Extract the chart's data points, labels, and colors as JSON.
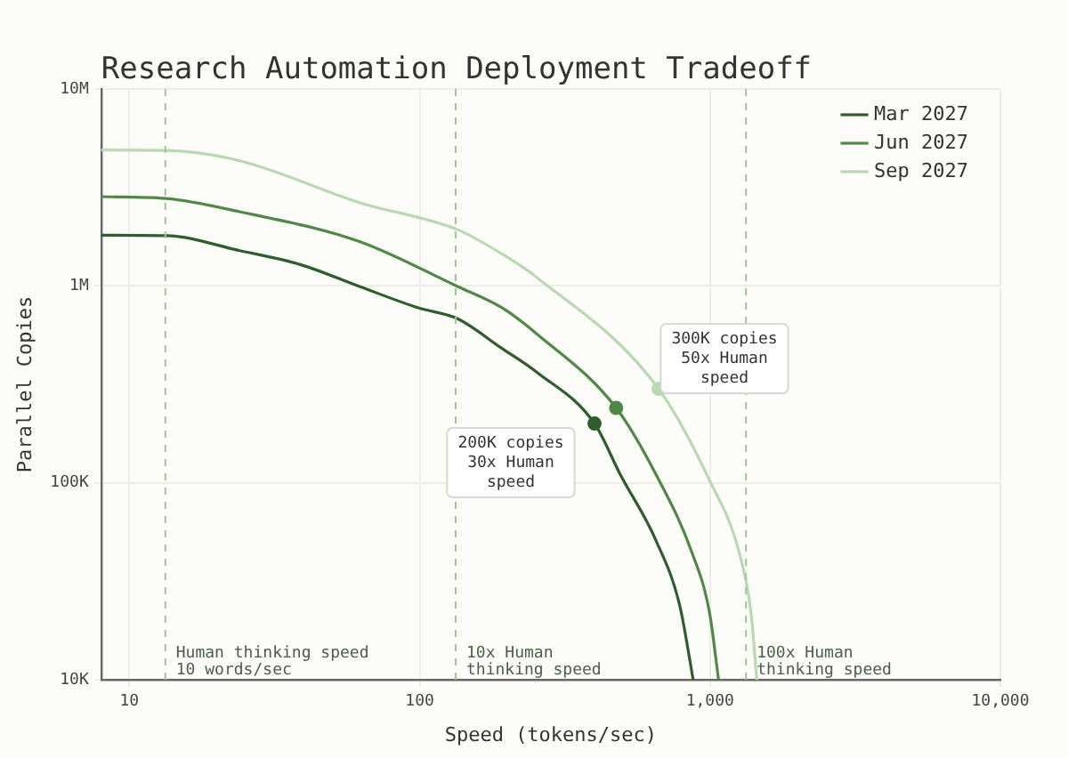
{
  "chart_data": {
    "type": "line",
    "title": "Research Automation Deployment Tradeoff",
    "xlabel": "Speed (tokens/sec)",
    "ylabel": "Parallel Copies",
    "log": "xy",
    "xlim": [
      8,
      10000
    ],
    "xticks": [
      10,
      100,
      {
        "value": 1000,
        "label": "1,000"
      },
      {
        "value": 10000,
        "label": "10,000"
      }
    ],
    "ylim": [
      10000,
      10000000
    ],
    "yticks": [
      {
        "value": 10000,
        "label": "10K"
      },
      {
        "value": 100000,
        "label": "100K"
      },
      {
        "value": 1000000,
        "label": "1M"
      },
      {
        "value": 10000000,
        "label": "10M"
      }
    ],
    "grid": true,
    "legend": "top right",
    "line_style": "solid",
    "marker": "none",
    "series": [
      {
        "name": "Mar 2027",
        "color": "#2e5e2b",
        "x": [
          8,
          13.4,
          24,
          39,
          62,
          99,
          135,
          191,
          254,
          400,
          491,
          652,
          787,
          875
        ],
        "values": [
          1810000,
          1800000,
          1510000,
          1280000,
          993000,
          773000,
          681000,
          484000,
          363000,
          200000,
          110000,
          50800,
          23700,
          10000
        ]
      },
      {
        "name": "Jun 2027",
        "color": "#4f8a45",
        "x": [
          8,
          13.4,
          24,
          62,
          135,
          191,
          254,
          475,
          652,
          865,
          996,
          1070
        ],
        "values": [
          2840000,
          2780000,
          2380000,
          1680000,
          993000,
          778000,
          568000,
          240000,
          110000,
          44500,
          21900,
          10000
        ]
      },
      {
        "name": "Sep 2027",
        "color": "#b8dab1",
        "x": [
          8,
          13.4,
          24,
          62,
          135,
          191,
          254,
          665,
          996,
          1259,
          1384,
          1449
        ],
        "values": [
          4900000,
          4870000,
          4320000,
          2650000,
          1930000,
          1460000,
          1100000,
          300000,
          103000,
          44500,
          21900,
          10000
        ]
      },
      {
        "type": "scatter",
        "marker": "circle",
        "x": [
          400,
          475,
          665
        ],
        "values": [
          200000,
          240000,
          300000
        ],
        "colors": [
          "#2e5e2b",
          "#4f8a45",
          "#b8dab1"
        ]
      }
    ],
    "ref_lines": [
      {
        "axis": "x",
        "value": 13.3,
        "label": "Human thinking speed\n10 words/sec",
        "color": "#9cc896",
        "line_style": "dashed"
      },
      {
        "axis": "x",
        "value": 133,
        "label": "10x Human\nthinking speed",
        "color": "#9cc896",
        "line_style": "dashed"
      },
      {
        "axis": "x",
        "value": 1330,
        "label": "100x Human\nthinking speed",
        "color": "#9cc896",
        "line_style": "dashed"
      }
    ],
    "annotations": [
      {
        "text": "200K copies\n30x Human\nspeed",
        "x": 400,
        "y": 200000
      },
      {
        "text": "300K copies\n50x Human\nspeed",
        "x": 665,
        "y": 300000
      }
    ]
  }
}
